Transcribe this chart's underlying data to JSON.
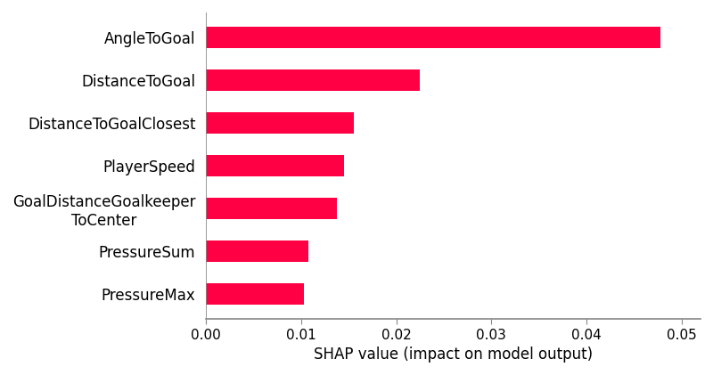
{
  "categories": [
    "PressureMax",
    "PressureSum",
    "GoalDistanceGoalkeeper\nToCenter",
    "PlayerSpeed",
    "DistanceToGoalClosest",
    "DistanceToGoal",
    "AngleToGoal"
  ],
  "values": [
    0.0103,
    0.0108,
    0.0138,
    0.0145,
    0.0155,
    0.0225,
    0.0478
  ],
  "bar_color": "#FF0044",
  "xlabel": "SHAP value (impact on model output)",
  "xlim": [
    0,
    0.052
  ],
  "xticks": [
    0.0,
    0.01,
    0.02,
    0.03,
    0.04,
    0.05
  ],
  "background_color": "#ffffff",
  "bar_height": 0.52,
  "xlabel_fontsize": 12,
  "tick_fontsize": 11,
  "label_fontsize": 12
}
